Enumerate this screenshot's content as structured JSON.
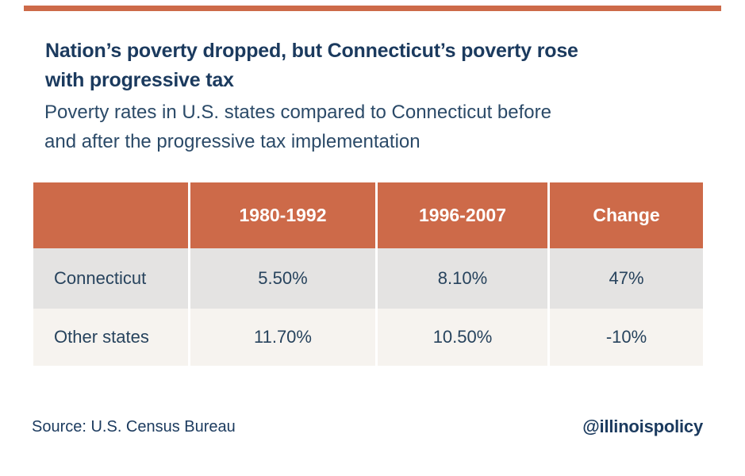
{
  "colors": {
    "accent_orange": "#cd6a49",
    "title_navy": "#1b3a5e",
    "subtitle_navy": "#2b4a68",
    "table_text_navy": "#27435d",
    "row_gray": "#e4e3e2",
    "row_cream": "#f6f3ef",
    "header_text": "#ffffff",
    "background": "#ffffff"
  },
  "header": {
    "title_line1": "Nation’s poverty dropped, but Connecticut’s poverty rose",
    "title_line2": "with progressive tax",
    "subtitle_line1": "Poverty rates in U.S. states compared to Connecticut before",
    "subtitle_line2": "and after the progressive tax implementation"
  },
  "table": {
    "columns": [
      "",
      "1980-1992",
      "1996-2007",
      "Change"
    ],
    "rows": [
      {
        "label": "Connecticut",
        "values": [
          "5.50%",
          "8.10%",
          "47%"
        ]
      },
      {
        "label": "Other states",
        "values": [
          "11.70%",
          "10.50%",
          "-10%"
        ]
      }
    ]
  },
  "footer": {
    "source": "Source: U.S. Census Bureau",
    "handle": "@illinoispolicy"
  },
  "chart_data": {
    "type": "table",
    "title": "Nation’s poverty dropped, but Connecticut’s poverty rose with progressive tax",
    "subtitle": "Poverty rates in U.S. states compared to Connecticut before and after the progressive tax implementation",
    "columns": [
      "",
      "1980-1992",
      "1996-2007",
      "Change"
    ],
    "rows": [
      {
        "label": "Connecticut",
        "1980-1992": "5.50%",
        "1996-2007": "8.10%",
        "Change": "47%"
      },
      {
        "label": "Other states",
        "1980-1992": "11.70%",
        "1996-2007": "10.50%",
        "Change": "-10%"
      }
    ],
    "source": "Source: U.S. Census Bureau",
    "attribution": "@illinoispolicy"
  }
}
